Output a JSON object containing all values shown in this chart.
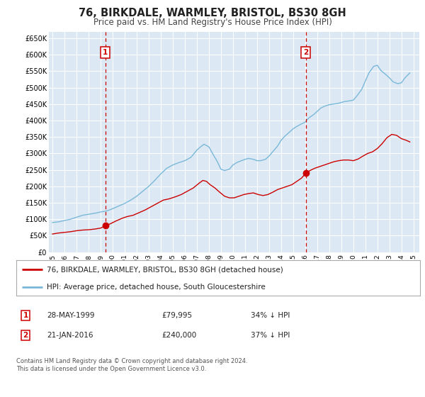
{
  "title": "76, BIRKDALE, WARMLEY, BRISTOL, BS30 8GH",
  "subtitle": "Price paid vs. HM Land Registry's House Price Index (HPI)",
  "title_fontsize": 10.5,
  "subtitle_fontsize": 8.5,
  "background_color": "#ffffff",
  "plot_bg_color": "#dce9f5",
  "grid_color": "#ffffff",
  "red_line_color": "#cc0000",
  "blue_line_color": "#7ab8d8",
  "marker_color": "#cc0000",
  "vline_color": "#cc0000",
  "legend_label_red": "76, BIRKDALE, WARMLEY, BRISTOL, BS30 8GH (detached house)",
  "legend_label_blue": "HPI: Average price, detached house, South Gloucestershire",
  "annotation1_label": "1",
  "annotation1_date": "28-MAY-1999",
  "annotation1_price": "£79,995",
  "annotation1_pct": "34% ↓ HPI",
  "annotation2_label": "2",
  "annotation2_date": "21-JAN-2016",
  "annotation2_price": "£240,000",
  "annotation2_pct": "37% ↓ HPI",
  "sale1_x": 1999.4,
  "sale1_y": 79995,
  "sale2_x": 2016.05,
  "sale2_y": 240000,
  "vline1_x": 1999.4,
  "vline2_x": 2016.05,
  "ylim": [
    0,
    670000
  ],
  "xlim": [
    1994.7,
    2025.5
  ],
  "yticks": [
    0,
    50000,
    100000,
    150000,
    200000,
    250000,
    300000,
    350000,
    400000,
    450000,
    500000,
    550000,
    600000,
    650000
  ],
  "ytick_labels": [
    "£0",
    "£50K",
    "£100K",
    "£150K",
    "£200K",
    "£250K",
    "£300K",
    "£350K",
    "£400K",
    "£450K",
    "£500K",
    "£550K",
    "£600K",
    "£650K"
  ],
  "xticks": [
    1995,
    1996,
    1997,
    1998,
    1999,
    2000,
    2001,
    2002,
    2003,
    2004,
    2005,
    2006,
    2007,
    2008,
    2009,
    2010,
    2011,
    2012,
    2013,
    2014,
    2015,
    2016,
    2017,
    2018,
    2019,
    2020,
    2021,
    2022,
    2023,
    2024,
    2025
  ],
  "footer_text": "Contains HM Land Registry data © Crown copyright and database right 2024.\nThis data is licensed under the Open Government Licence v3.0.",
  "red_x": [
    1995.0,
    1995.5,
    1996.0,
    1996.5,
    1997.0,
    1997.5,
    1998.0,
    1998.5,
    1999.0,
    1999.4,
    1999.8,
    2000.3,
    2000.8,
    2001.2,
    2001.7,
    2002.2,
    2002.7,
    2003.2,
    2003.7,
    2004.2,
    2004.7,
    2005.2,
    2005.7,
    2006.2,
    2006.7,
    2007.2,
    2007.5,
    2007.8,
    2008.1,
    2008.5,
    2008.9,
    2009.3,
    2009.7,
    2010.1,
    2010.5,
    2010.9,
    2011.3,
    2011.7,
    2012.1,
    2012.5,
    2012.9,
    2013.3,
    2013.7,
    2014.1,
    2014.5,
    2014.9,
    2015.3,
    2015.7,
    2016.05,
    2016.4,
    2016.8,
    2017.2,
    2017.6,
    2018.0,
    2018.4,
    2018.8,
    2019.2,
    2019.6,
    2020.0,
    2020.4,
    2020.8,
    2021.2,
    2021.6,
    2022.0,
    2022.4,
    2022.8,
    2023.2,
    2023.6,
    2024.0,
    2024.4,
    2024.7
  ],
  "red_y": [
    55000,
    58000,
    60000,
    62000,
    65000,
    67000,
    68000,
    70000,
    73000,
    79995,
    86000,
    95000,
    103000,
    108000,
    112000,
    120000,
    128000,
    138000,
    148000,
    158000,
    162000,
    168000,
    175000,
    185000,
    195000,
    210000,
    218000,
    215000,
    205000,
    195000,
    182000,
    170000,
    165000,
    165000,
    170000,
    175000,
    178000,
    180000,
    175000,
    172000,
    175000,
    182000,
    190000,
    195000,
    200000,
    205000,
    215000,
    225000,
    240000,
    248000,
    255000,
    260000,
    265000,
    270000,
    275000,
    278000,
    280000,
    280000,
    278000,
    283000,
    292000,
    300000,
    305000,
    315000,
    330000,
    348000,
    358000,
    355000,
    345000,
    340000,
    335000
  ],
  "blue_x": [
    1995.0,
    1995.5,
    1996.0,
    1996.5,
    1997.0,
    1997.5,
    1998.0,
    1998.5,
    1999.0,
    1999.5,
    2000.0,
    2000.5,
    2001.0,
    2001.5,
    2002.0,
    2002.5,
    2003.0,
    2003.5,
    2004.0,
    2004.5,
    2005.0,
    2005.5,
    2006.0,
    2006.5,
    2007.0,
    2007.3,
    2007.6,
    2008.0,
    2008.3,
    2008.7,
    2009.0,
    2009.3,
    2009.7,
    2010.0,
    2010.3,
    2010.7,
    2011.0,
    2011.3,
    2011.7,
    2012.0,
    2012.3,
    2012.7,
    2013.0,
    2013.3,
    2013.7,
    2014.0,
    2014.3,
    2014.7,
    2015.0,
    2015.3,
    2015.7,
    2016.0,
    2016.3,
    2016.7,
    2017.0,
    2017.3,
    2017.7,
    2018.0,
    2018.3,
    2018.7,
    2019.0,
    2019.3,
    2019.7,
    2020.0,
    2020.3,
    2020.7,
    2021.0,
    2021.3,
    2021.7,
    2022.0,
    2022.3,
    2022.7,
    2023.0,
    2023.3,
    2023.7,
    2024.0,
    2024.3,
    2024.7
  ],
  "blue_y": [
    90000,
    92000,
    96000,
    100000,
    106000,
    112000,
    115000,
    118000,
    122000,
    125000,
    132000,
    140000,
    148000,
    158000,
    170000,
    185000,
    200000,
    218000,
    238000,
    255000,
    265000,
    272000,
    278000,
    288000,
    310000,
    320000,
    328000,
    320000,
    300000,
    275000,
    252000,
    248000,
    252000,
    265000,
    272000,
    278000,
    282000,
    285000,
    282000,
    278000,
    278000,
    282000,
    292000,
    305000,
    322000,
    340000,
    352000,
    365000,
    375000,
    382000,
    390000,
    395000,
    408000,
    418000,
    428000,
    438000,
    445000,
    448000,
    450000,
    452000,
    455000,
    458000,
    460000,
    462000,
    475000,
    495000,
    520000,
    545000,
    565000,
    568000,
    552000,
    540000,
    530000,
    518000,
    512000,
    515000,
    530000,
    545000
  ]
}
